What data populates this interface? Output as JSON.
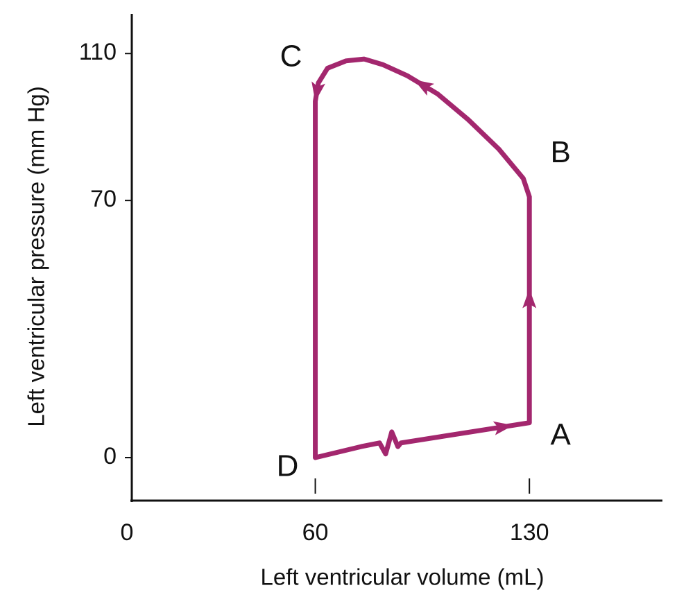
{
  "chart_data": {
    "type": "line",
    "x_label": "Left ventricular volume (mL)",
    "y_label": "Left ventricular pressure (mm Hg)",
    "xlim": [
      0,
      173.5
    ],
    "ylim": [
      -11.7,
      120.8
    ],
    "xticks": [
      0,
      60,
      130
    ],
    "yticks": [
      0,
      70,
      110
    ],
    "series": [
      {
        "color": "#a3276e",
        "x": [
          60,
          75,
          81,
          83,
          85,
          87,
          88,
          130,
          130,
          128,
          120,
          110,
          100,
          90,
          82,
          76,
          70,
          64,
          61,
          60,
          60
        ],
        "values": [
          0,
          3,
          4,
          1,
          7,
          3,
          4,
          9.5,
          71,
          76,
          84,
          92,
          99,
          104,
          107,
          108.5,
          108,
          106,
          102,
          97,
          0
        ]
      }
    ],
    "point_labels": [
      {
        "label": "A",
        "x": 130,
        "y": 9.5
      },
      {
        "label": "B",
        "x": 130,
        "y": 76
      },
      {
        "label": "C",
        "x": 60,
        "y": 105
      },
      {
        "label": "D",
        "x": 60,
        "y": 0
      }
    ]
  }
}
